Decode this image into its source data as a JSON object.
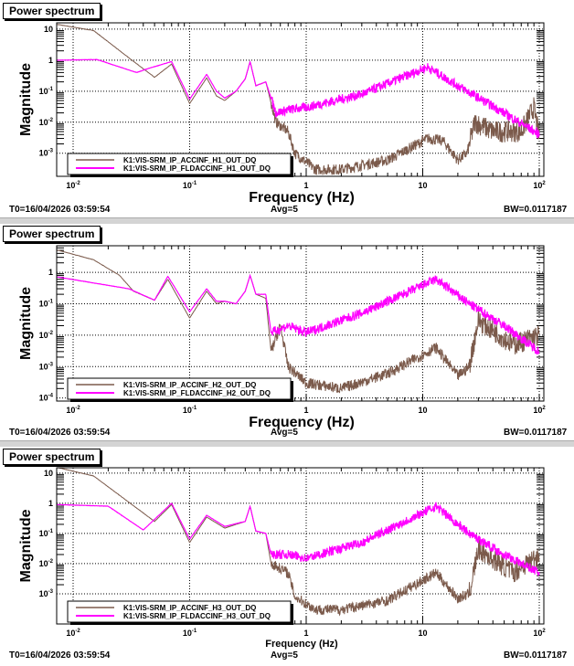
{
  "colors": {
    "acc": "#7b5a4b",
    "fld": "#ff00ff",
    "grid": "#000000",
    "separator": "#d4d4d4"
  },
  "chart_data": [
    {
      "type": "line",
      "title": "Power spectrum",
      "xlabel": "Frequency (Hz)",
      "ylabel": "Magnitude",
      "xscale": "log",
      "yscale": "log",
      "xlim": [
        0.0073,
        110
      ],
      "ylim": [
        0.00018,
        16
      ],
      "grid": true,
      "legend": "bottom-left",
      "xticks": [
        "10^-2",
        "10^-1",
        "1",
        "10",
        "10^2"
      ],
      "yticks": [
        "10",
        "1",
        "10^-1",
        "10^-2",
        "10^-3"
      ],
      "footer": {
        "t0": "T0=16/04/2026 03:59:54",
        "avg": "Avg=5",
        "bw": "BW=0.0117187"
      },
      "series": [
        {
          "name": "K1:VIS-SRM_IP_ACCINF_H1_OUT_DQ",
          "color": "acc",
          "points": [
            [
              0.0075,
              14
            ],
            [
              0.015,
              9
            ],
            [
              0.03,
              1.2
            ],
            [
              0.05,
              0.28
            ],
            [
              0.07,
              0.75
            ],
            [
              0.1,
              0.04
            ],
            [
              0.14,
              0.27
            ],
            [
              0.17,
              0.07
            ],
            [
              0.2,
              0.05
            ],
            [
              0.25,
              0.1
            ],
            [
              0.3,
              0.25
            ],
            [
              0.33,
              0.9
            ],
            [
              0.37,
              0.15
            ],
            [
              0.45,
              0.2
            ],
            [
              0.55,
              0.01
            ],
            [
              0.7,
              0.005
            ],
            [
              0.8,
              0.001
            ],
            [
              1.2,
              0.0003
            ],
            [
              2,
              0.0003
            ],
            [
              5,
              0.0006
            ],
            [
              11,
              0.003
            ],
            [
              15,
              0.0025
            ],
            [
              20,
              0.0006
            ],
            [
              24,
              0.001
            ],
            [
              28,
              0.01
            ],
            [
              40,
              0.005
            ],
            [
              70,
              0.005
            ],
            [
              90,
              0.03
            ],
            [
              100,
              0.003
            ]
          ]
        },
        {
          "name": "K1:VIS-SRM_IP_FLDACCINF_H1_OUT_DQ",
          "color": "fld",
          "points": [
            [
              0.0075,
              1
            ],
            [
              0.016,
              1.05
            ],
            [
              0.035,
              0.4
            ],
            [
              0.045,
              0.55
            ],
            [
              0.07,
              0.9
            ],
            [
              0.1,
              0.055
            ],
            [
              0.14,
              0.35
            ],
            [
              0.17,
              0.1
            ],
            [
              0.2,
              0.06
            ],
            [
              0.25,
              0.1
            ],
            [
              0.3,
              0.25
            ],
            [
              0.33,
              0.9
            ],
            [
              0.37,
              0.15
            ],
            [
              0.45,
              0.2
            ],
            [
              0.55,
              0.02
            ],
            [
              0.7,
              0.025
            ],
            [
              1,
              0.03
            ],
            [
              3,
              0.08
            ],
            [
              11,
              0.6
            ],
            [
              20,
              0.15
            ],
            [
              50,
              0.02
            ],
            [
              100,
              0.004
            ]
          ]
        }
      ]
    },
    {
      "type": "line",
      "title": "Power spectrum",
      "xlabel": "Frequency (Hz)",
      "ylabel": "Magnitude",
      "xscale": "log",
      "yscale": "log",
      "xlim": [
        0.0073,
        110
      ],
      "ylim": [
        8e-05,
        7
      ],
      "grid": true,
      "legend": "bottom-left",
      "xticks": [
        "10^-2",
        "10^-1",
        "1",
        "10",
        "10^2"
      ],
      "yticks": [
        "1",
        "10^-1",
        "10^-2",
        "10^-3",
        "10^-4"
      ],
      "footer": {
        "t0": "T0=16/04/2026 03:59:54",
        "avg": "Avg=5",
        "bw": "BW=0.0117187"
      },
      "series": [
        {
          "name": "K1:VIS-SRM_IP_ACCINF_H2_OUT_DQ",
          "color": "acc",
          "points": [
            [
              0.0075,
              5
            ],
            [
              0.015,
              2.5
            ],
            [
              0.025,
              0.8
            ],
            [
              0.033,
              0.25
            ],
            [
              0.05,
              0.13
            ],
            [
              0.065,
              0.6
            ],
            [
              0.1,
              0.035
            ],
            [
              0.14,
              0.25
            ],
            [
              0.17,
              0.1
            ],
            [
              0.2,
              0.12
            ],
            [
              0.25,
              0.1
            ],
            [
              0.3,
              0.25
            ],
            [
              0.33,
              0.8
            ],
            [
              0.37,
              0.2
            ],
            [
              0.45,
              0.15
            ],
            [
              0.5,
              0.003
            ],
            [
              0.6,
              0.02
            ],
            [
              0.7,
              0.001
            ],
            [
              1,
              0.0003
            ],
            [
              2,
              0.0002
            ],
            [
              5,
              0.0006
            ],
            [
              13,
              0.004
            ],
            [
              20,
              0.0005
            ],
            [
              25,
              0.001
            ],
            [
              30,
              0.03
            ],
            [
              60,
              0.005
            ],
            [
              100,
              0.01
            ]
          ]
        },
        {
          "name": "K1:VIS-SRM_IP_FLDACCINF_H2_OUT_DQ",
          "color": "fld",
          "points": [
            [
              0.0075,
              0.7
            ],
            [
              0.03,
              0.3
            ],
            [
              0.05,
              0.13
            ],
            [
              0.065,
              0.75
            ],
            [
              0.1,
              0.055
            ],
            [
              0.14,
              0.3
            ],
            [
              0.17,
              0.12
            ],
            [
              0.2,
              0.12
            ],
            [
              0.25,
              0.1
            ],
            [
              0.3,
              0.25
            ],
            [
              0.33,
              0.8
            ],
            [
              0.37,
              0.2
            ],
            [
              0.45,
              0.2
            ],
            [
              0.5,
              0.012
            ],
            [
              0.7,
              0.02
            ],
            [
              1,
              0.012
            ],
            [
              3,
              0.05
            ],
            [
              13,
              0.6
            ],
            [
              25,
              0.1
            ],
            [
              50,
              0.02
            ],
            [
              100,
              0.003
            ]
          ]
        }
      ]
    },
    {
      "type": "line",
      "title": "Power spectrum",
      "xlabel": "Frequency (Hz)",
      "ylabel": "Magnitude",
      "xscale": "log",
      "yscale": "log",
      "xlim": [
        0.0073,
        110
      ],
      "ylim": [
        0.0001,
        15
      ],
      "grid": true,
      "legend": "bottom-left",
      "xticks": [
        "10^-2",
        "10^-1",
        "1",
        "10",
        "10^2"
      ],
      "yticks": [
        "10",
        "1",
        "10^-1",
        "10^-2",
        "10^-3"
      ],
      "footer": {
        "t0": "T0=16/04/2026 03:59:54",
        "avg": "Avg=5",
        "bw": "BW=0.0117187"
      },
      "series": [
        {
          "name": "K1:VIS-SRM_IP_ACCINF_H3_OUT_DQ",
          "color": "acc",
          "points": [
            [
              0.0075,
              15
            ],
            [
              0.015,
              8
            ],
            [
              0.05,
              0.25
            ],
            [
              0.07,
              0.9
            ],
            [
              0.1,
              0.05
            ],
            [
              0.14,
              0.35
            ],
            [
              0.2,
              0.15
            ],
            [
              0.3,
              0.25
            ],
            [
              0.33,
              0.8
            ],
            [
              0.37,
              0.12
            ],
            [
              0.45,
              0.1
            ],
            [
              0.5,
              0.01
            ],
            [
              0.7,
              0.005
            ],
            [
              0.8,
              0.0008
            ],
            [
              1.2,
              0.0003
            ],
            [
              2,
              0.0003
            ],
            [
              5,
              0.0006
            ],
            [
              13,
              0.005
            ],
            [
              20,
              0.0007
            ],
            [
              25,
              0.001
            ],
            [
              30,
              0.03
            ],
            [
              60,
              0.005
            ],
            [
              100,
              0.02
            ]
          ]
        },
        {
          "name": "K1:VIS-SRM_IP_FLDACCINF_H3_OUT_DQ",
          "color": "fld",
          "points": [
            [
              0.0075,
              0.9
            ],
            [
              0.02,
              0.8
            ],
            [
              0.04,
              0.13
            ],
            [
              0.07,
              1
            ],
            [
              0.1,
              0.065
            ],
            [
              0.14,
              0.4
            ],
            [
              0.2,
              0.17
            ],
            [
              0.3,
              0.25
            ],
            [
              0.33,
              0.8
            ],
            [
              0.37,
              0.12
            ],
            [
              0.45,
              0.1
            ],
            [
              0.5,
              0.02
            ],
            [
              0.7,
              0.02
            ],
            [
              1,
              0.015
            ],
            [
              3,
              0.05
            ],
            [
              13,
              0.8
            ],
            [
              25,
              0.1
            ],
            [
              50,
              0.02
            ],
            [
              100,
              0.005
            ]
          ]
        }
      ]
    }
  ]
}
